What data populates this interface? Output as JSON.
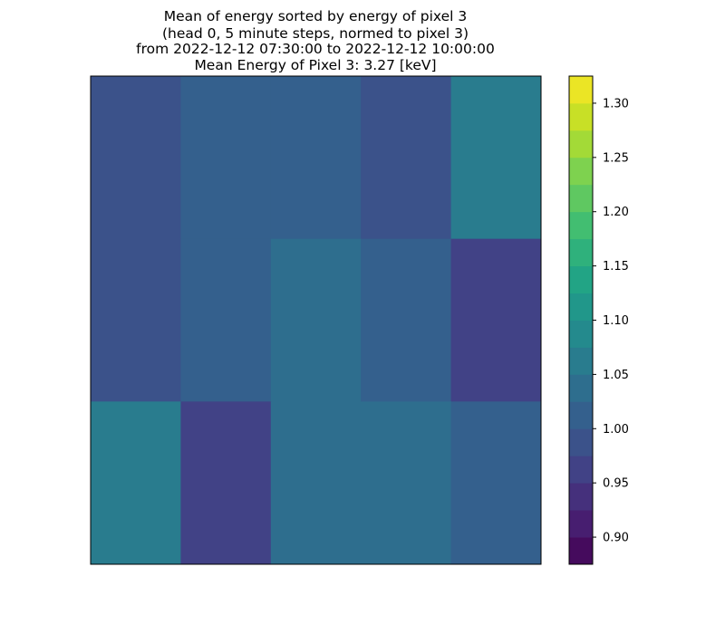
{
  "chart_data": {
    "type": "heatmap",
    "title_lines": [
      "Mean of energy sorted by energy of pixel 3",
      "(head 0, 5 minute steps, normed to pixel 3)",
      "from 2022-12-12 07:30:00 to 2022-12-12 10:00:00",
      "Mean Energy of Pixel 3: 3.27 [keV]"
    ],
    "xlabel": "",
    "ylabel": "",
    "colormap": "viridis",
    "color_range": [
      0.875,
      1.325
    ],
    "color_levels": 18,
    "colorbar_ticks": [
      "0.90",
      "0.95",
      "1.00",
      "1.05",
      "1.10",
      "1.15",
      "1.20",
      "1.25",
      "1.30"
    ],
    "grid": [
      [
        0.98,
        1.01,
        1.01,
        0.98,
        1.07
      ],
      [
        0.98,
        1.01,
        1.04,
        1.01,
        0.96
      ],
      [
        1.07,
        0.97,
        1.04,
        1.04,
        1.01
      ]
    ]
  }
}
